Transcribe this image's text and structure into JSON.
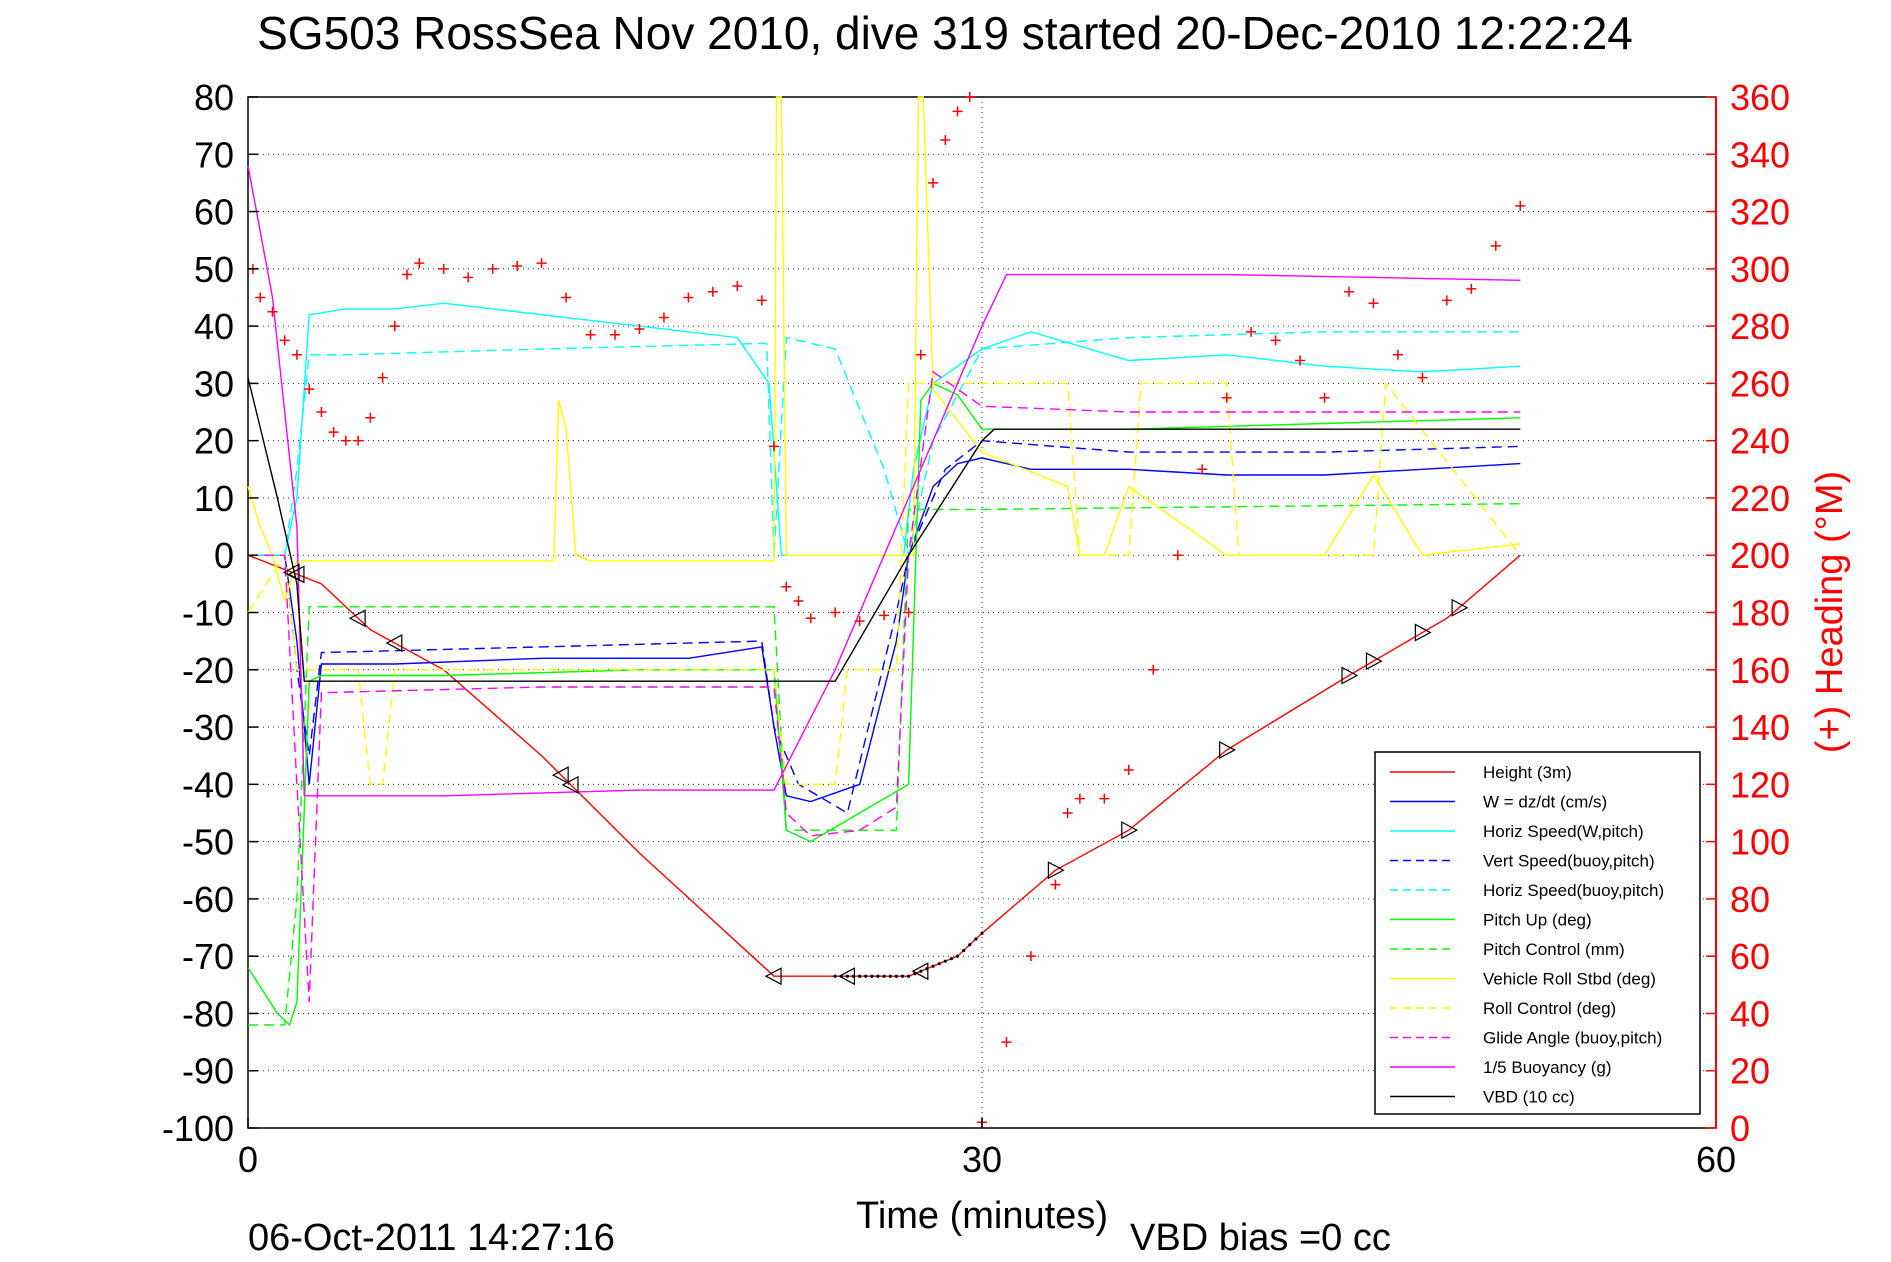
{
  "title": "SG503 RossSea Nov 2010, dive 319 started 20-Dec-2010 12:22:24",
  "footer": {
    "timestamp": "06-Oct-2011 14:27:16",
    "vbd_bias": "VBD bias =0 cc"
  },
  "colors": {
    "axis": "#000000",
    "right_axis": "#ff0000",
    "grid": "#000000",
    "height": "#ff0000",
    "w": "#0000ff",
    "horiz_speed": "#00ffff",
    "pitch": "#00ff00",
    "roll": "#ffff00",
    "glide": "#ff00ff",
    "buoyancy": "#ff00ff",
    "vbd": "#000000",
    "heading": "#ff0000"
  },
  "chart_data": {
    "type": "line",
    "xlabel": "Time (minutes)",
    "ylabel_right": "(+) Heading (°M)",
    "xlim": [
      0,
      60
    ],
    "ylim_left": [
      -100,
      80
    ],
    "ylim_right": [
      0,
      360
    ],
    "x_ticks": [
      "0",
      "30",
      "60"
    ],
    "y_ticks_left": [
      "80",
      "70",
      "60",
      "50",
      "40",
      "30",
      "20",
      "10",
      "0",
      "-10",
      "-20",
      "-30",
      "-40",
      "-50",
      "-60",
      "-70",
      "-80",
      "-90",
      "-100"
    ],
    "y_ticks_right": [
      "360",
      "340",
      "320",
      "300",
      "280",
      "260",
      "240",
      "220",
      "200",
      "180",
      "160",
      "140",
      "120",
      "100",
      "80",
      "60",
      "40",
      "20",
      "0"
    ],
    "grid": "dotted horizontal, dotted vertical at 30",
    "legend_position": "bottom-right",
    "legend": [
      {
        "label": "Height (3m)",
        "color": "#ff0000",
        "dash": false
      },
      {
        "label": "W = dz/dt (cm/s)",
        "color": "#0000ff",
        "dash": false
      },
      {
        "label": "Horiz Speed(W,pitch)",
        "color": "#00ffff",
        "dash": false
      },
      {
        "label": "Vert Speed(buoy,pitch)",
        "color": "#0000ff",
        "dash": true
      },
      {
        "label": "Horiz Speed(buoy,pitch)",
        "color": "#00ffff",
        "dash": true
      },
      {
        "label": "Pitch Up (deg)",
        "color": "#00ff00",
        "dash": false
      },
      {
        "label": "Pitch Control (mm)",
        "color": "#00ff00",
        "dash": true
      },
      {
        "label": "Vehicle Roll Stbd (deg)",
        "color": "#ffff00",
        "dash": false
      },
      {
        "label": "Roll Control (deg)",
        "color": "#ffff00",
        "dash": true
      },
      {
        "label": "Glide Angle (buoy,pitch)",
        "color": "#ff00ff",
        "dash": true
      },
      {
        "label": "1/5 Buoyancy (g)",
        "color": "#ff00ff",
        "dash": false
      },
      {
        "label": "VBD (10 cc)",
        "color": "#000000",
        "dash": false
      }
    ],
    "series": [
      {
        "name": "Height (3m)",
        "axis": "left",
        "color": "#ff0000",
        "dash": false,
        "x": [
          0,
          3,
          5,
          8,
          12,
          16,
          21.5,
          24,
          27,
          29,
          30,
          33,
          36,
          40,
          45,
          49,
          52
        ],
        "y": [
          0,
          -5,
          -13,
          -20,
          -35,
          -52,
          -73.5,
          -73.5,
          -73.5,
          -70,
          -66,
          -55,
          -48,
          -34,
          -21,
          -11,
          0
        ]
      },
      {
        "name": "W = dz/dt (cm/s)",
        "axis": "left",
        "color": "#0000ff",
        "dash": false,
        "x": [
          0,
          1.5,
          2,
          2.5,
          3,
          6,
          12,
          18,
          21,
          21.5,
          22,
          23,
          25,
          26.5,
          27,
          28,
          29,
          30,
          32,
          36,
          40,
          44,
          48,
          52
        ],
        "y": [
          0,
          0,
          -15,
          -40,
          -19,
          -19,
          -18,
          -18,
          -16,
          -30,
          -42,
          -43,
          -40,
          -15,
          0,
          12,
          16,
          17,
          15,
          15,
          14,
          14,
          15,
          16
        ]
      },
      {
        "name": "Horiz Speed(W,pitch)",
        "axis": "left",
        "color": "#00ffff",
        "dash": false,
        "x": [
          0,
          1.5,
          2,
          2.5,
          4,
          6,
          8,
          12,
          16,
          20,
          21.3,
          21.8,
          26.8,
          27.2,
          28,
          30,
          32,
          36,
          40,
          44,
          48,
          52
        ],
        "y": [
          0,
          0,
          10,
          42,
          43,
          43,
          44,
          42,
          40,
          38,
          30,
          0,
          0,
          15,
          30,
          36,
          39,
          34,
          35,
          33,
          32,
          33
        ]
      },
      {
        "name": "Vert Speed(buoy,pitch)",
        "axis": "left",
        "color": "#0000ff",
        "dash": true,
        "x": [
          0,
          1.5,
          2,
          2.5,
          3,
          12,
          21,
          21.5,
          22.5,
          24.5,
          26.5,
          27,
          28.5,
          30,
          36,
          44,
          52
        ],
        "y": [
          0,
          0,
          -20,
          -35,
          -17,
          -16,
          -15,
          -30,
          -40,
          -45,
          -10,
          0,
          15,
          20,
          18,
          18,
          19
        ]
      },
      {
        "name": "Horiz Speed(buoy,pitch)",
        "axis": "left",
        "color": "#00ffff",
        "dash": true,
        "x": [
          0,
          1.5,
          2,
          2.5,
          4,
          12,
          21.2,
          21.5,
          22,
          24,
          26,
          27,
          28,
          30,
          36,
          44,
          52
        ],
        "y": [
          0,
          0,
          15,
          35,
          35,
          36,
          37,
          0,
          38,
          36,
          15,
          0,
          20,
          36,
          38,
          39,
          39
        ]
      },
      {
        "name": "Pitch Up (deg)",
        "axis": "left",
        "color": "#00ff00",
        "dash": false,
        "x": [
          0,
          1.2,
          1.7,
          2,
          2.5,
          3,
          8,
          16,
          21.5,
          22,
          23,
          25,
          27,
          27.5,
          28,
          29,
          30,
          36,
          44,
          52
        ],
        "y": [
          -72,
          -80,
          -82,
          -78,
          -22,
          -21,
          -21,
          -20,
          -20,
          -48,
          -50,
          -45,
          -40,
          27,
          30,
          28,
          22,
          22,
          23,
          24
        ]
      },
      {
        "name": "Pitch Control (mm)",
        "axis": "left",
        "color": "#00ff00",
        "dash": true,
        "x": [
          0,
          1.5,
          2,
          2.5,
          10,
          21.5,
          22,
          26.5,
          27,
          30,
          52
        ],
        "y": [
          -82,
          -82,
          -60,
          -9,
          -9,
          -9,
          -48,
          -48,
          8,
          8,
          9
        ]
      },
      {
        "name": "Vehicle Roll Stbd (deg)",
        "axis": "left",
        "color": "#ffff00",
        "dash": false,
        "x": [
          0,
          0.5,
          1,
          1.5,
          2,
          5,
          12.5,
          12.7,
          13,
          13.4,
          14,
          20,
          21.5,
          21.6,
          21.8,
          22,
          27.2,
          27.4,
          27.6,
          28,
          30,
          33.5,
          34,
          35,
          36,
          40,
          44,
          46,
          48,
          52
        ],
        "y": [
          12,
          5,
          0,
          -8,
          -1,
          -1,
          -1,
          27,
          22,
          0,
          -1,
          -1,
          -1,
          80,
          80,
          0,
          0,
          80,
          80,
          29,
          18,
          12,
          0,
          0,
          12,
          0,
          0,
          14,
          0,
          2
        ]
      },
      {
        "name": "Roll Control (deg)",
        "axis": "left",
        "color": "#ffff00",
        "dash": true,
        "x": [
          0,
          1.5,
          2,
          4.5,
          5,
          5.5,
          6,
          21.5,
          22,
          24,
          24.5,
          26.5,
          27,
          30,
          33.5,
          34,
          36,
          36.5,
          40,
          40.5,
          46,
          46.5,
          52
        ],
        "y": [
          -10,
          0,
          -20,
          -20,
          -40,
          -40,
          -20,
          -20,
          -40,
          -40,
          -20,
          -20,
          30,
          30,
          30,
          0,
          0,
          30,
          30,
          0,
          0,
          30,
          0
        ]
      },
      {
        "name": "Glide Angle (buoy,pitch)",
        "axis": "left",
        "color": "#ff00ff",
        "dash": true,
        "x": [
          0,
          1.5,
          2,
          2.5,
          3,
          12,
          21.5,
          22,
          23,
          25,
          26.5,
          27,
          28,
          30,
          36,
          44,
          52
        ],
        "y": [
          0,
          0,
          -40,
          -78,
          -24,
          -23,
          -23,
          -45,
          -49,
          -48,
          -44,
          0,
          32,
          26,
          25,
          25,
          25
        ]
      },
      {
        "name": "1/5 Buoyancy (g)",
        "axis": "left",
        "color": "#ff00ff",
        "dash": false,
        "x": [
          0,
          1,
          2,
          2.3,
          8,
          16,
          21.5,
          24,
          27,
          30,
          31,
          40,
          52
        ],
        "y": [
          68,
          45,
          5,
          -42,
          -42,
          -41,
          -41,
          -20,
          10,
          40,
          49,
          49,
          48
        ]
      },
      {
        "name": "VBD (10 cc)",
        "axis": "left",
        "color": "#000000",
        "dash": false,
        "x": [
          0,
          1.2,
          2,
          2.3,
          8,
          16,
          24,
          27,
          30,
          30.5,
          40,
          52
        ],
        "y": [
          31,
          10,
          -5,
          -22,
          -22,
          -22,
          -22,
          0,
          20,
          22,
          22,
          22
        ]
      },
      {
        "name": "(+) Heading (°M)",
        "axis": "right",
        "color": "#ff0000",
        "dash": false,
        "markers": "plus",
        "x": [
          0.2,
          0.5,
          1,
          1.5,
          2,
          2.5,
          3,
          3.5,
          4,
          4.5,
          5,
          5.5,
          6,
          6.5,
          7,
          8,
          9,
          10,
          11,
          12,
          13,
          14,
          15,
          16,
          17,
          18,
          19,
          20,
          21,
          21.5,
          22,
          22.5,
          23,
          24,
          25,
          26,
          27,
          27.5,
          28,
          28.5,
          29,
          29.5,
          30,
          31,
          32,
          33,
          33.5,
          34,
          35,
          36,
          37,
          38,
          39,
          40,
          41,
          42,
          43,
          44,
          45,
          46,
          47,
          48,
          49,
          50,
          51,
          52
        ],
        "y": [
          300,
          290,
          285,
          275,
          270,
          258,
          250,
          243,
          240,
          240,
          248,
          262,
          280,
          298,
          302,
          300,
          297,
          300,
          301,
          302,
          290,
          277,
          277,
          279,
          283,
          290,
          292,
          294,
          289,
          238,
          189,
          184,
          178,
          180,
          177,
          179,
          180,
          270,
          330,
          345,
          355,
          360,
          2,
          30,
          60,
          85,
          110,
          115,
          115,
          125,
          160,
          200,
          230,
          255,
          278,
          275,
          268,
          255,
          292,
          288,
          270,
          262,
          289,
          293,
          308,
          322
        ]
      }
    ],
    "markers": {
      "triangles_x": [
        1.8,
        2,
        4.5,
        6,
        12.8,
        13.2,
        21.5,
        24.5,
        27.5,
        33,
        36,
        40,
        45,
        46,
        48,
        49.5
      ],
      "crosses_x": [
        26,
        28.5
      ]
    }
  }
}
